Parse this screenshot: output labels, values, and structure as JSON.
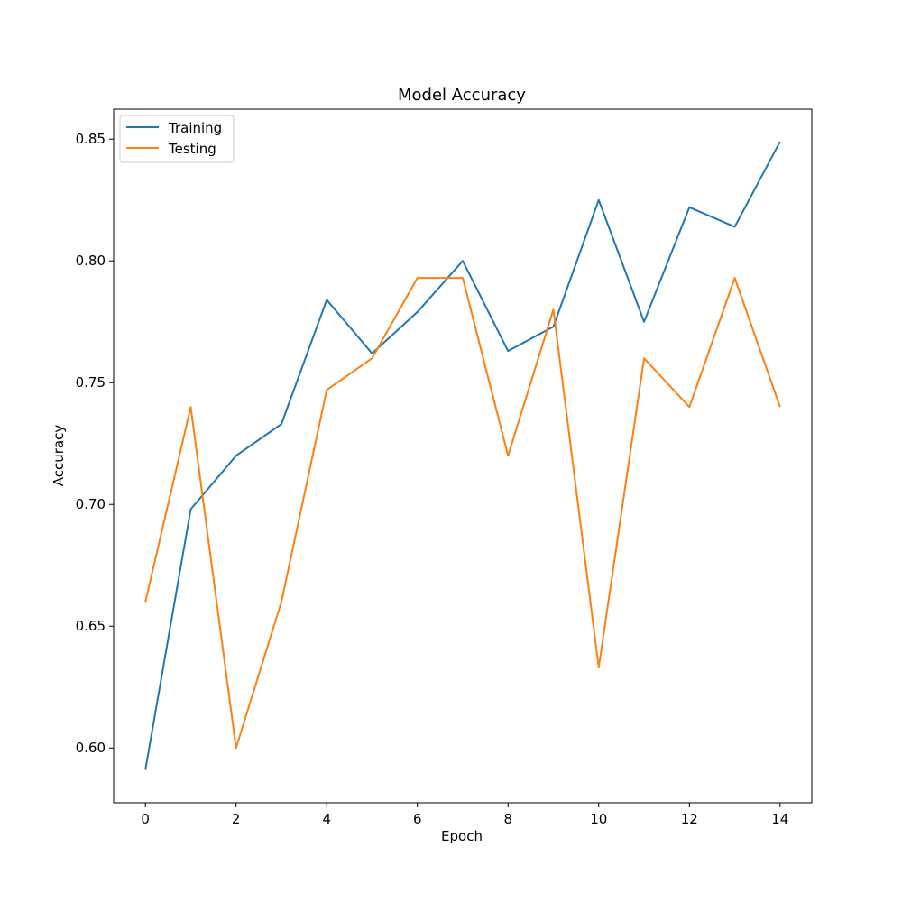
{
  "chart_data": {
    "type": "line",
    "title": "Model Accuracy",
    "xlabel": "Epoch",
    "ylabel": "Accuracy",
    "x": [
      0,
      1,
      2,
      3,
      4,
      5,
      6,
      7,
      8,
      9,
      10,
      11,
      12,
      13,
      14
    ],
    "xlim": [
      -0.7,
      14.7
    ],
    "ylim": [
      0.5775,
      0.8623
    ],
    "xticks": [
      0,
      2,
      4,
      6,
      8,
      10,
      12,
      14
    ],
    "yticks": [
      0.6,
      0.65,
      0.7,
      0.75,
      0.8,
      0.85
    ],
    "xtick_labels": [
      "0",
      "2",
      "4",
      "6",
      "8",
      "10",
      "12",
      "14"
    ],
    "ytick_labels": [
      "0.60",
      "0.65",
      "0.70",
      "0.75",
      "0.80",
      "0.85"
    ],
    "grid": false,
    "legend_position": "upper-left",
    "series": [
      {
        "name": "Training",
        "color": "#1f77b4",
        "values": [
          0.591,
          0.698,
          0.72,
          0.733,
          0.784,
          0.762,
          0.779,
          0.8,
          0.763,
          0.773,
          0.825,
          0.775,
          0.822,
          0.814,
          0.849
        ]
      },
      {
        "name": "Testing",
        "color": "#ff7f0e",
        "values": [
          0.66,
          0.74,
          0.6,
          0.66,
          0.747,
          0.76,
          0.793,
          0.793,
          0.72,
          0.78,
          0.633,
          0.76,
          0.74,
          0.793,
          0.74
        ]
      }
    ]
  }
}
